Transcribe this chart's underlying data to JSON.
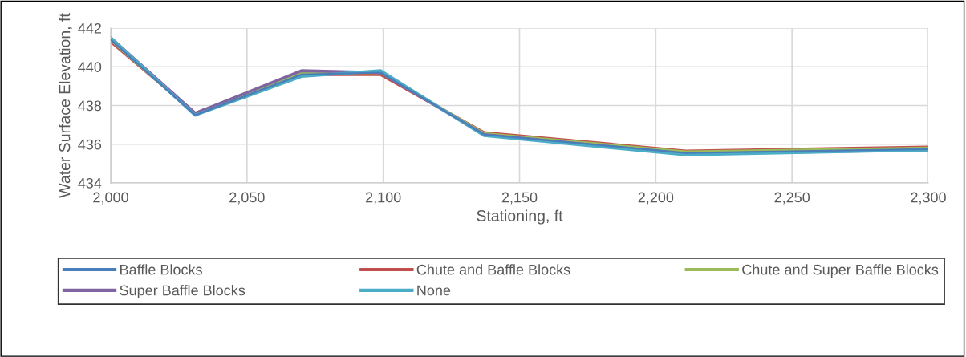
{
  "chart_data": {
    "type": "line",
    "xlabel": "Stationing, ft",
    "ylabel": "Water Surface Elevation, ft",
    "x": [
      2000,
      2031,
      2070,
      2099,
      2137,
      2211,
      2300
    ],
    "xlim": [
      2000,
      2300
    ],
    "xticks": [
      {
        "value": 2000,
        "label": "2,000"
      },
      {
        "value": 2050,
        "label": "2,050"
      },
      {
        "value": 2100,
        "label": "2,100"
      },
      {
        "value": 2150,
        "label": "2,150"
      },
      {
        "value": 2200,
        "label": "2,200"
      },
      {
        "value": 2250,
        "label": "2,250"
      },
      {
        "value": 2300,
        "label": "2,300"
      }
    ],
    "ylim": [
      434,
      442
    ],
    "yticks": [
      434,
      436,
      438,
      440,
      442
    ],
    "grid": true,
    "legend": "bottom",
    "marker": "none",
    "line_style": "solid",
    "series": [
      {
        "name": "Baffle Blocks",
        "color": "#4a7ebb",
        "values": [
          441.4,
          437.5,
          439.6,
          439.7,
          436.5,
          435.55,
          435.75
        ]
      },
      {
        "name": "Chute and Baffle Blocks",
        "color": "#c0504d",
        "values": [
          441.3,
          437.6,
          439.6,
          439.6,
          436.6,
          435.65,
          435.85
        ]
      },
      {
        "name": "Chute and Super Baffle Blocks",
        "color": "#9bbb59",
        "values": [
          441.4,
          437.55,
          439.7,
          439.7,
          436.55,
          435.6,
          435.8
        ]
      },
      {
        "name": "Super Baffle Blocks",
        "color": "#8064a2",
        "values": [
          441.5,
          437.6,
          439.8,
          439.7,
          436.5,
          435.5,
          435.7
        ]
      },
      {
        "name": "None",
        "color": "#4bacc6",
        "values": [
          441.5,
          437.5,
          439.5,
          439.8,
          436.45,
          435.45,
          435.7
        ]
      }
    ]
  }
}
